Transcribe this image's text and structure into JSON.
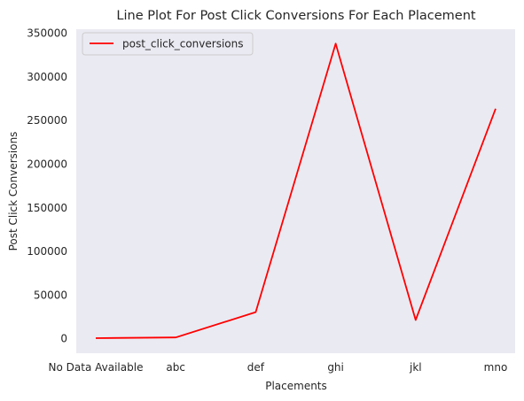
{
  "chart_data": {
    "type": "line",
    "title": "Line Plot For Post Click Conversions For Each Placement",
    "xlabel": "Placements",
    "ylabel": "Post Click Conversions",
    "categories": [
      "No Data Available",
      "abc",
      "def",
      "ghi",
      "jkl",
      "mno"
    ],
    "series": [
      {
        "name": "post_click_conversions",
        "color": "#ff0000",
        "values": [
          200,
          1000,
          30000,
          337500,
          21000,
          263000
        ]
      }
    ],
    "ylim": [
      -17000,
      354000
    ],
    "yticks": [
      0,
      50000,
      100000,
      150000,
      200000,
      250000,
      300000,
      350000
    ],
    "grid": false,
    "legend_position": "top-left",
    "plot_background": "#eaeaf2"
  }
}
